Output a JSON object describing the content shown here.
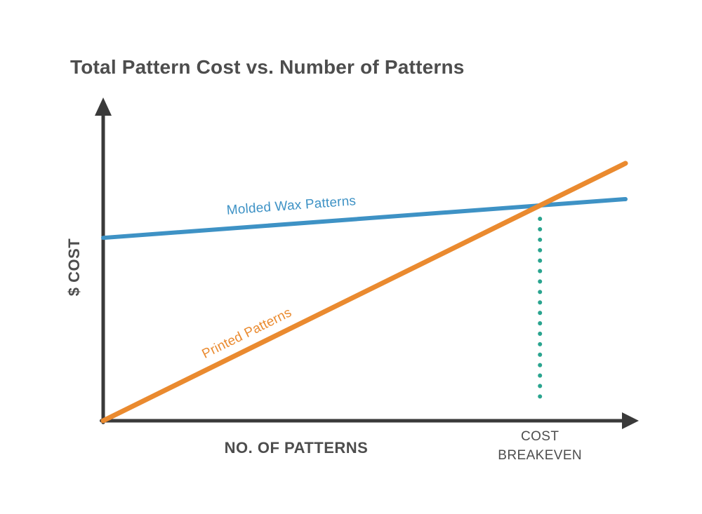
{
  "title": "Total Pattern Cost vs. Number of Patterns",
  "chart_data": {
    "type": "line",
    "title": "Total Pattern Cost vs. Number of Patterns",
    "xlabel": "NO. OF PATTERNS",
    "ylabel": "$ COST",
    "grid": false,
    "x_axis": {
      "style": "arrow",
      "ticks": "none",
      "range_normalized": [
        0,
        1
      ]
    },
    "y_axis": {
      "style": "arrow",
      "ticks": "none",
      "range_normalized": [
        0,
        1
      ]
    },
    "series": [
      {
        "name": "Molded Wax Patterns",
        "color": "#3e92c5",
        "x_normalized": [
          0,
          1
        ],
        "y_normalized": [
          0.567,
          0.687
        ]
      },
      {
        "name": "Printed Patterns",
        "color": "#ea8a2f",
        "x_normalized": [
          0,
          1
        ],
        "y_normalized": [
          0.0,
          0.798
        ]
      }
    ],
    "annotations": [
      {
        "type": "vertical-dotted-line",
        "label": "COST BREAKEVEN",
        "x_normalized": 0.836,
        "color": "#2aa48f"
      }
    ]
  },
  "colors": {
    "background": "#ffffff",
    "axis": "#3a3a3a",
    "text": "#4d4d4d",
    "molded_wax_line": "#3e92c5",
    "printed_line": "#ea8a2f",
    "breakeven_dots": "#2aa48f"
  }
}
